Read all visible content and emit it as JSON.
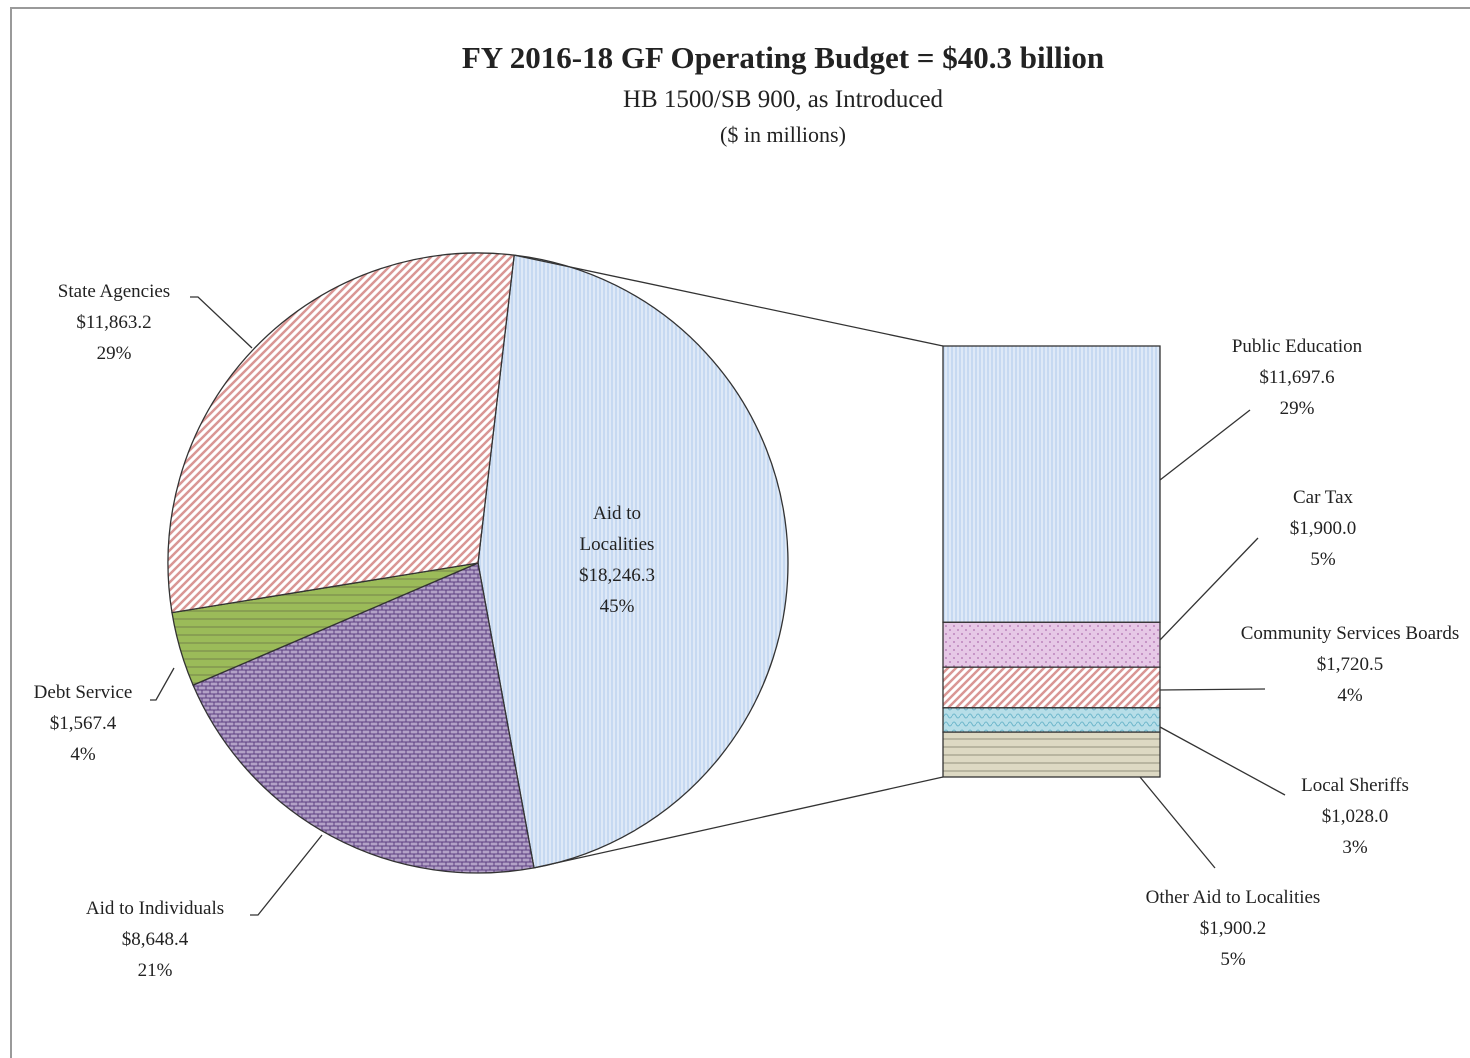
{
  "chart_data": {
    "type": "pie-of-bar",
    "title": "FY 2016-18 GF Operating Budget = $40.3 billion",
    "subtitle": "HB 1500/SB 900, as Introduced",
    "unit_note": "($ in millions)",
    "pie": {
      "categories": [
        "Aid to Localities",
        "Aid to Individuals",
        "Debt Service",
        "State Agencies"
      ],
      "values": [
        18246.3,
        8648.4,
        1567.4,
        11863.2
      ],
      "value_labels": [
        "$18,246.3",
        "$8,648.4",
        "$1,567.4",
        "$11,863.2"
      ],
      "percents": [
        45,
        21,
        4,
        29
      ],
      "percent_labels": [
        "45%",
        "21%",
        "4%",
        "29%"
      ],
      "colors": [
        "#c6d9f1",
        "#b3a2c7",
        "#9bbb59",
        "#d99694"
      ]
    },
    "bar": {
      "categories": [
        "Public Education",
        "Car Tax",
        "Community Services Boards",
        "Local Sheriffs",
        "Other Aid to Localities"
      ],
      "values": [
        11697.6,
        1900.0,
        1720.5,
        1028.0,
        1900.2
      ],
      "value_labels": [
        "$11,697.6",
        "$1,900.0",
        "$1,720.5",
        "$1,028.0",
        "$1,900.2"
      ],
      "percents": [
        29,
        5,
        4,
        3,
        5
      ],
      "percent_labels": [
        "29%",
        "5%",
        "4%",
        "3%",
        "5%"
      ],
      "colors": [
        "#c6d9f1",
        "#e6c8e6",
        "#d99694",
        "#b7dee8",
        "#ddd9c3"
      ]
    }
  }
}
